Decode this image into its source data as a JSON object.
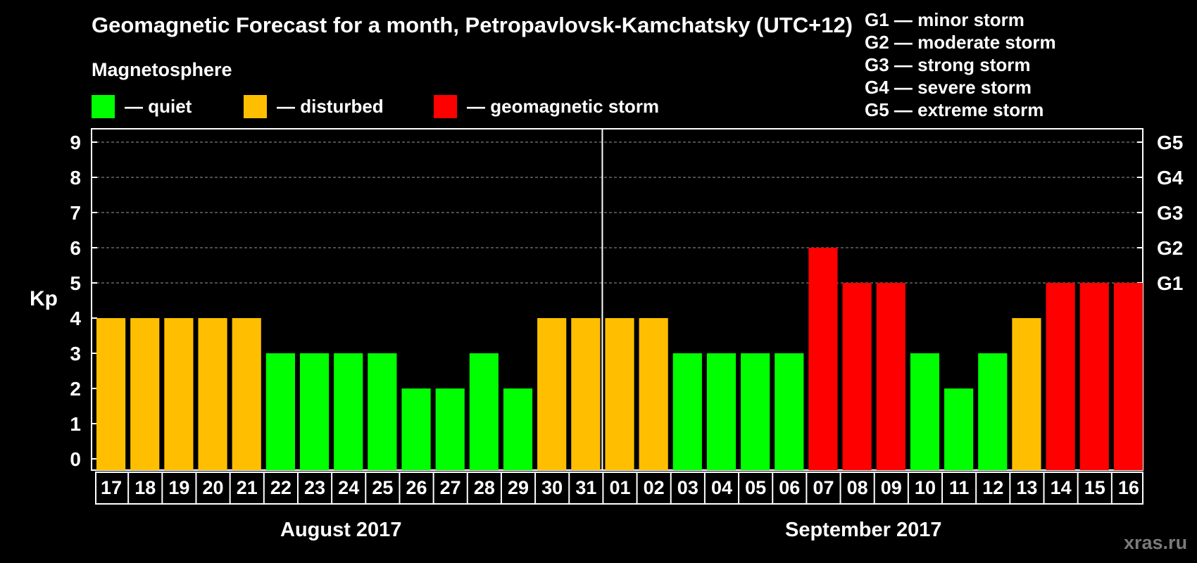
{
  "chart_data": {
    "type": "bar",
    "title": "Geomagnetic Forecast for a month, Petropavlovsk-Kamchatsky (UTC+12)",
    "subtitle": "Magnetosphere",
    "ylabel": "Kp",
    "ylim": [
      0,
      9
    ],
    "yticks": [
      "0",
      "1",
      "2",
      "3",
      "4",
      "5",
      "6",
      "7",
      "8",
      "9"
    ],
    "right_ticks": [
      {
        "kp": 5,
        "label": "G1"
      },
      {
        "kp": 6,
        "label": "G2"
      },
      {
        "kp": 7,
        "label": "G3"
      },
      {
        "kp": 8,
        "label": "G4"
      },
      {
        "kp": 9,
        "label": "G5"
      }
    ],
    "categories": [
      "17",
      "18",
      "19",
      "20",
      "21",
      "22",
      "23",
      "24",
      "25",
      "26",
      "27",
      "28",
      "29",
      "30",
      "31",
      "01",
      "02",
      "03",
      "04",
      "05",
      "06",
      "07",
      "08",
      "09",
      "10",
      "11",
      "12",
      "13",
      "14",
      "15",
      "16"
    ],
    "values": [
      4,
      4,
      4,
      4,
      4,
      3,
      3,
      3,
      3,
      2,
      2,
      3,
      2,
      4,
      4,
      4,
      4,
      3,
      3,
      3,
      3,
      6,
      5,
      5,
      3,
      2,
      3,
      4,
      5,
      5,
      5
    ],
    "months": [
      {
        "label": "August 2017",
        "start_index": 0,
        "end_index": 14
      },
      {
        "label": "September 2017",
        "start_index": 15,
        "end_index": 30
      }
    ],
    "legend": [
      {
        "label": "— quiet",
        "color": "#00ff00"
      },
      {
        "label": "— disturbed",
        "color": "#ffbf00"
      },
      {
        "label": "— geomagnetic storm",
        "color": "#ff0000"
      }
    ],
    "storm_scale": [
      "G1 — minor storm",
      "G2 — moderate storm",
      "G3 — strong storm",
      "G4 — severe storm",
      "G5 — extreme storm"
    ],
    "grid": "dashed lines at Kp 5–9"
  },
  "site": "xras.ru"
}
